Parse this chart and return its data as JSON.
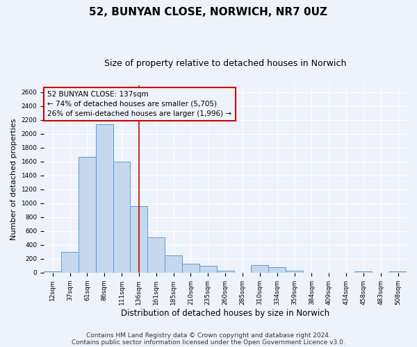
{
  "title": "52, BUNYAN CLOSE, NORWICH, NR7 0UZ",
  "subtitle": "Size of property relative to detached houses in Norwich",
  "xlabel": "Distribution of detached houses by size in Norwich",
  "ylabel": "Number of detached properties",
  "bin_labels": [
    "12sqm",
    "37sqm",
    "61sqm",
    "86sqm",
    "111sqm",
    "136sqm",
    "161sqm",
    "185sqm",
    "210sqm",
    "235sqm",
    "260sqm",
    "285sqm",
    "310sqm",
    "334sqm",
    "359sqm",
    "384sqm",
    "409sqm",
    "434sqm",
    "458sqm",
    "483sqm",
    "508sqm"
  ],
  "bar_values": [
    20,
    295,
    1670,
    2140,
    1600,
    960,
    510,
    250,
    130,
    100,
    30,
    0,
    110,
    80,
    30,
    0,
    0,
    0,
    20,
    0,
    20
  ],
  "bar_color": "#c5d8ed",
  "bar_edge_color": "#5b9bd5",
  "vline_x_idx": 5,
  "vline_color": "#cc0000",
  "annotation_line1": "52 BUNYAN CLOSE: 137sqm",
  "annotation_line2": "← 74% of detached houses are smaller (5,705)",
  "annotation_line3": "26% of semi-detached houses are larger (1,996) →",
  "annotation_box_color": "#cc0000",
  "ylim": [
    0,
    2700
  ],
  "yticks": [
    0,
    200,
    400,
    600,
    800,
    1000,
    1200,
    1400,
    1600,
    1800,
    2000,
    2200,
    2400,
    2600
  ],
  "footer_line1": "Contains HM Land Registry data © Crown copyright and database right 2024.",
  "footer_line2": "Contains public sector information licensed under the Open Government Licence v3.0.",
  "bg_color": "#eef3fb",
  "grid_color": "#ffffff",
  "title_fontsize": 11,
  "subtitle_fontsize": 9,
  "xlabel_fontsize": 8.5,
  "ylabel_fontsize": 8,
  "tick_fontsize": 6.5,
  "annotation_fontsize": 7.5,
  "footer_fontsize": 6.5
}
